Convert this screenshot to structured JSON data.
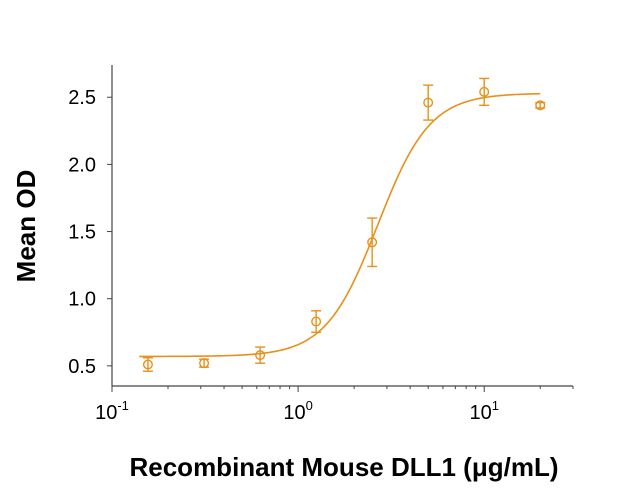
{
  "chart_data": {
    "type": "scatter",
    "title": "",
    "xlabel": "Recombinant Mouse DLL1 (μg/mL)",
    "ylabel": "Mean OD",
    "xscale": "log",
    "xlim": [
      0.1,
      30
    ],
    "ylim": [
      0.35,
      2.74
    ],
    "xticks": [
      {
        "base": "10",
        "exp": "-1",
        "value": 0.1
      },
      {
        "base": "10",
        "exp": "0",
        "value": 1
      },
      {
        "base": "10",
        "exp": "1",
        "value": 10
      }
    ],
    "yticks": [
      "0.5",
      "1.0",
      "1.5",
      "2.0",
      "2.5"
    ],
    "grid": false,
    "color": "#E8901A",
    "points": [
      {
        "x": 0.156,
        "y": 0.51,
        "err": 0.05
      },
      {
        "x": 0.3125,
        "y": 0.52,
        "err": 0.03
      },
      {
        "x": 0.625,
        "y": 0.58,
        "err": 0.06
      },
      {
        "x": 1.25,
        "y": 0.83,
        "err": 0.08
      },
      {
        "x": 2.5,
        "y": 1.42,
        "err": 0.18
      },
      {
        "x": 5,
        "y": 2.46,
        "err": 0.13
      },
      {
        "x": 10,
        "y": 2.54,
        "err": 0.1
      },
      {
        "x": 20,
        "y": 2.44,
        "err": 0.02
      }
    ],
    "fit": {
      "model": "4PL",
      "bottom": 0.57,
      "top": 2.53,
      "ec50": 2.68,
      "hill": 3.1,
      "xrange": [
        0.14,
        20
      ]
    }
  }
}
